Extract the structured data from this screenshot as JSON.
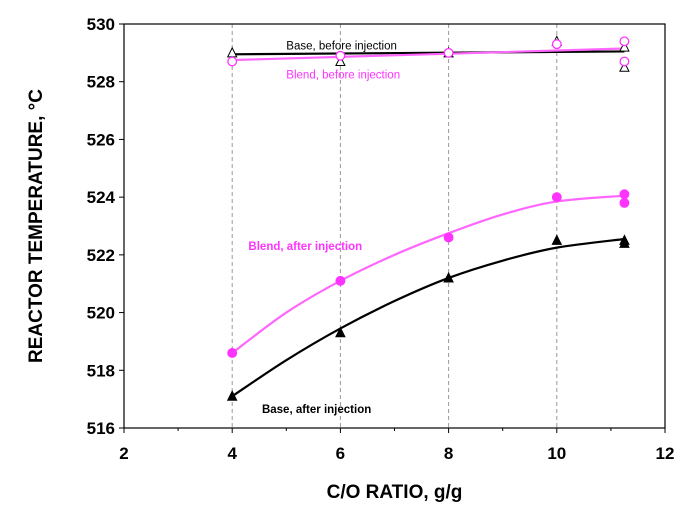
{
  "chart_data": {
    "type": "scatter",
    "title": "",
    "xlabel": "C/O RATIO, g/g",
    "ylabel": "REACTOR TEMPERATURE, °C",
    "xlim": [
      2,
      12
    ],
    "ylim": [
      516,
      530
    ],
    "xticks": [
      2,
      4,
      6,
      8,
      10,
      12
    ],
    "yticks": [
      516,
      518,
      520,
      522,
      524,
      526,
      528,
      530
    ],
    "grid": "vertical dashed",
    "colors": {
      "base": "#000000",
      "blend": "#ff33ff",
      "blend_fit": "#ff66ff"
    },
    "series": [
      {
        "name": "Base, before injection",
        "color": "#000000",
        "marker": "open-triangle",
        "x": [
          4,
          6,
          8,
          10,
          11.25,
          11.25
        ],
        "y": [
          529.0,
          528.7,
          529.0,
          529.4,
          529.2,
          528.5
        ],
        "fit": {
          "x": [
            4,
            11.25
          ],
          "y": [
            528.95,
            529.05
          ]
        }
      },
      {
        "name": "Blend, before injection",
        "color": "#ff33ff",
        "marker": "open-circle",
        "x": [
          4,
          6,
          8,
          10,
          11.25,
          11.25
        ],
        "y": [
          528.7,
          528.9,
          529.0,
          529.3,
          529.4,
          528.7
        ],
        "fit": {
          "x": [
            4,
            11.25
          ],
          "y": [
            528.75,
            529.15
          ]
        }
      },
      {
        "name": "Blend, after injection",
        "color": "#ff33ff",
        "marker": "filled-circle",
        "x": [
          4,
          6,
          8,
          10,
          11.25,
          11.25
        ],
        "y": [
          518.6,
          521.1,
          522.6,
          524.0,
          524.1,
          523.8
        ],
        "fit": {
          "x": [
            4,
            5,
            6,
            7,
            8,
            9,
            10,
            11.25
          ],
          "y": [
            518.6,
            520.0,
            521.1,
            522.0,
            522.75,
            523.4,
            523.85,
            524.05
          ]
        }
      },
      {
        "name": "Base, after injection",
        "color": "#000000",
        "marker": "filled-triangle",
        "x": [
          4,
          6,
          8,
          10,
          11.25,
          11.25
        ],
        "y": [
          517.1,
          519.3,
          521.2,
          522.5,
          522.5,
          522.4
        ],
        "fit": {
          "x": [
            4,
            5,
            6,
            7,
            8,
            9,
            10,
            11.25
          ],
          "y": [
            517.1,
            518.35,
            519.45,
            520.4,
            521.2,
            521.8,
            522.25,
            522.55
          ]
        }
      }
    ],
    "annotations": [
      {
        "text": "Base, before injection",
        "x": 5.0,
        "y": 529.25,
        "color": "#000000",
        "bold": false
      },
      {
        "text": "Blend, before injection",
        "x": 5.0,
        "y": 528.25,
        "color": "#ff33ff",
        "bold": false
      },
      {
        "text": "Blend, after injection",
        "x": 4.3,
        "y": 522.3,
        "color": "#ff33ff",
        "bold": true
      },
      {
        "text": "Base, after injection",
        "x": 4.55,
        "y": 516.65,
        "color": "#000000",
        "bold": true
      }
    ]
  }
}
